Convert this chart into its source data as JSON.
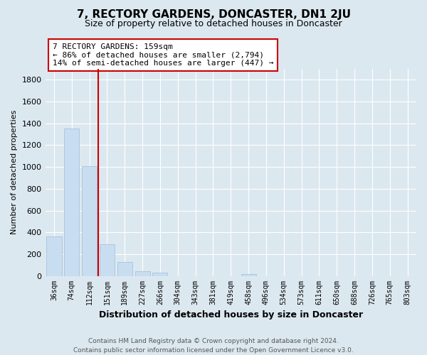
{
  "title": "7, RECTORY GARDENS, DONCASTER, DN1 2JU",
  "subtitle": "Size of property relative to detached houses in Doncaster",
  "xlabel": "Distribution of detached houses by size in Doncaster",
  "ylabel": "Number of detached properties",
  "bar_labels": [
    "36sqm",
    "74sqm",
    "112sqm",
    "151sqm",
    "189sqm",
    "227sqm",
    "266sqm",
    "304sqm",
    "343sqm",
    "381sqm",
    "419sqm",
    "458sqm",
    "496sqm",
    "534sqm",
    "573sqm",
    "611sqm",
    "650sqm",
    "688sqm",
    "726sqm",
    "765sqm",
    "803sqm"
  ],
  "bar_values": [
    360,
    1350,
    1010,
    290,
    130,
    45,
    30,
    0,
    0,
    0,
    0,
    15,
    0,
    0,
    0,
    0,
    0,
    0,
    0,
    0,
    0
  ],
  "bar_color": "#c8ddf0",
  "bar_edgecolor": "#a0bcd8",
  "property_line_color": "#cc0000",
  "property_line_index": 3,
  "annotation_line1": "7 RECTORY GARDENS: 159sqm",
  "annotation_line2": "← 86% of detached houses are smaller (2,794)",
  "annotation_line3": "14% of semi-detached houses are larger (447) →",
  "annotation_box_facecolor": "#ffffff",
  "annotation_box_edgecolor": "#cc0000",
  "ylim": [
    0,
    1900
  ],
  "yticks": [
    0,
    200,
    400,
    600,
    800,
    1000,
    1200,
    1400,
    1600,
    1800
  ],
  "background_color": "#dce8f0",
  "grid_color": "#ffffff",
  "footer_line1": "Contains HM Land Registry data © Crown copyright and database right 2024.",
  "footer_line2": "Contains public sector information licensed under the Open Government Licence v3.0.",
  "title_fontsize": 11,
  "subtitle_fontsize": 9,
  "xlabel_fontsize": 9,
  "ylabel_fontsize": 8,
  "tick_fontsize": 8,
  "xtick_fontsize": 7,
  "annotation_fontsize": 8,
  "footer_fontsize": 6.5
}
